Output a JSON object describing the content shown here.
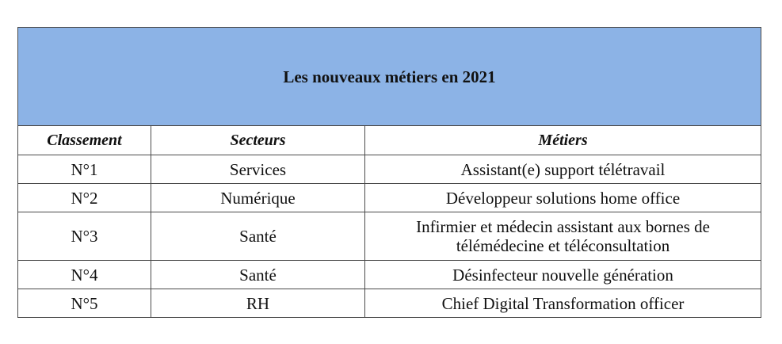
{
  "table": {
    "title": "Les nouveaux métiers en 2021",
    "headers": [
      "Classement",
      "Secteurs",
      "Métiers"
    ],
    "rows": [
      {
        "rank": "N°1",
        "sector": "Services",
        "job": "Assistant(e) support télétravail"
      },
      {
        "rank": "N°2",
        "sector": "Numérique",
        "job": "Développeur solutions home office"
      },
      {
        "rank": "N°3",
        "sector": "Santé",
        "job": "Infirmier et médecin assistant aux bornes de télémédecine et téléconsultation"
      },
      {
        "rank": "N°4",
        "sector": "Santé",
        "job": "Désinfecteur nouvelle génération"
      },
      {
        "rank": "N°5",
        "sector": "RH",
        "job": "Chief Digital Transformation officer"
      }
    ]
  },
  "colors": {
    "title_background": "#8cb3e6",
    "border": "#4a4a4a"
  }
}
